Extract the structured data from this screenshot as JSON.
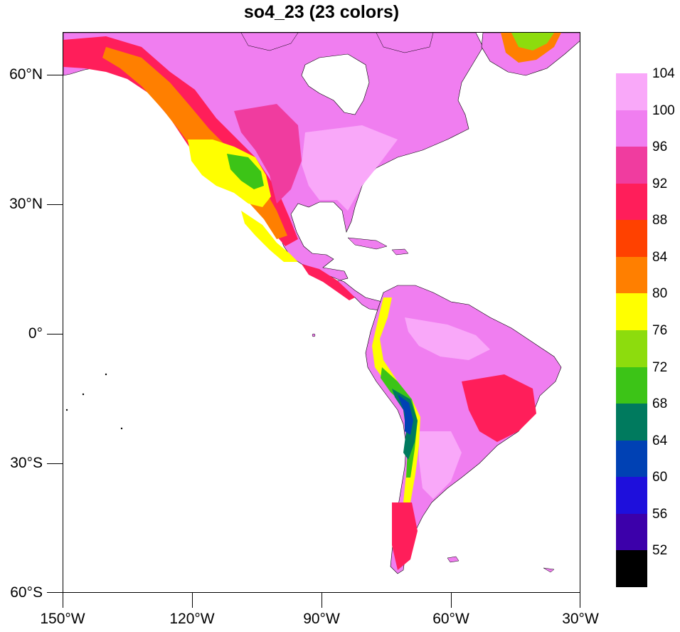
{
  "title": "so4_23 (23 colors)",
  "map": {
    "projection": "cylindrical-equidistant",
    "lon_range": [
      -150,
      -30
    ],
    "lat_range": [
      -60,
      70
    ],
    "lat_labels": [
      "60°N",
      "30°N",
      "0°",
      "30°S",
      "60°S"
    ],
    "lon_labels": [
      "150°W",
      "120°W",
      "90°W",
      "60°W",
      "30°W"
    ],
    "ocean_color": "#ffffff",
    "coastline_color": "#000000",
    "land_base_color": "#f07ef0"
  },
  "colorbar": {
    "orientation": "vertical",
    "placement": "right",
    "labels": [
      "104",
      "100",
      "96",
      "92",
      "88",
      "84",
      "80",
      "76",
      "72",
      "68",
      "64",
      "60",
      "56",
      "52"
    ],
    "colors": [
      "#f9a8f9",
      "#f07ef0",
      "#f03c9f",
      "#ff1e5a",
      "#ff4100",
      "#ff7f00",
      "#ffff00",
      "#8ddc0d",
      "#3cc417",
      "#007a5e",
      "#0041b4",
      "#1e0fdc",
      "#3c00aa",
      "#000000"
    ]
  }
}
